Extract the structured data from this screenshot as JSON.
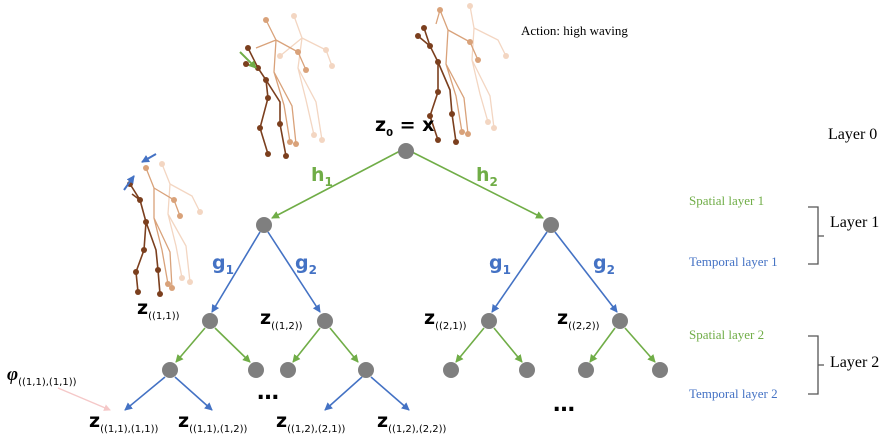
{
  "action_label": "Action: high waving",
  "root_label": {
    "main": "z",
    "sub": "0",
    "rest": " = x"
  },
  "edge_labels": {
    "h1": {
      "main": "h",
      "sub": "1"
    },
    "h2": {
      "main": "h",
      "sub": "2"
    },
    "g1_left": {
      "main": "g",
      "sub": "1"
    },
    "g2_left": {
      "main": "g",
      "sub": "2"
    },
    "g1_right": {
      "main": "g",
      "sub": "1"
    },
    "g2_right": {
      "main": "g",
      "sub": "2"
    }
  },
  "node_labels": {
    "z11": {
      "main": "z",
      "sub": "((1,1))"
    },
    "z12": {
      "main": "z",
      "sub": "((1,2))"
    },
    "z21": {
      "main": "z",
      "sub": "((2,1))"
    },
    "z22": {
      "main": "z",
      "sub": "((2,2))"
    },
    "z1111": {
      "main": "z",
      "sub": "((1,1),(1,1))"
    },
    "z1112": {
      "main": "z",
      "sub": "((1,1),(1,2))"
    },
    "z1221": {
      "main": "z",
      "sub": "((1,2),(2,1))"
    },
    "z1222": {
      "main": "z",
      "sub": "((1,2),(2,2))"
    }
  },
  "phi_label": {
    "main": "φ",
    "sub": "((1,1),(1,1))"
  },
  "ellipsis": "…",
  "layers": {
    "layer0": "Layer 0",
    "layer1": "Layer 1",
    "layer2": "Layer 2",
    "spatial1": "Spatial layer 1",
    "temporal1": "Temporal layer 1",
    "spatial2": "Spatial layer 2",
    "temporal2": "Temporal layer 2"
  },
  "colors": {
    "spatial": "#70ad47",
    "temporal": "#4472c4",
    "node": "#7f7f7f",
    "skeleton_dark": "#7b3f1e",
    "skeleton_mid": "#d9a27a",
    "skeleton_light": "#f3d6c2"
  }
}
